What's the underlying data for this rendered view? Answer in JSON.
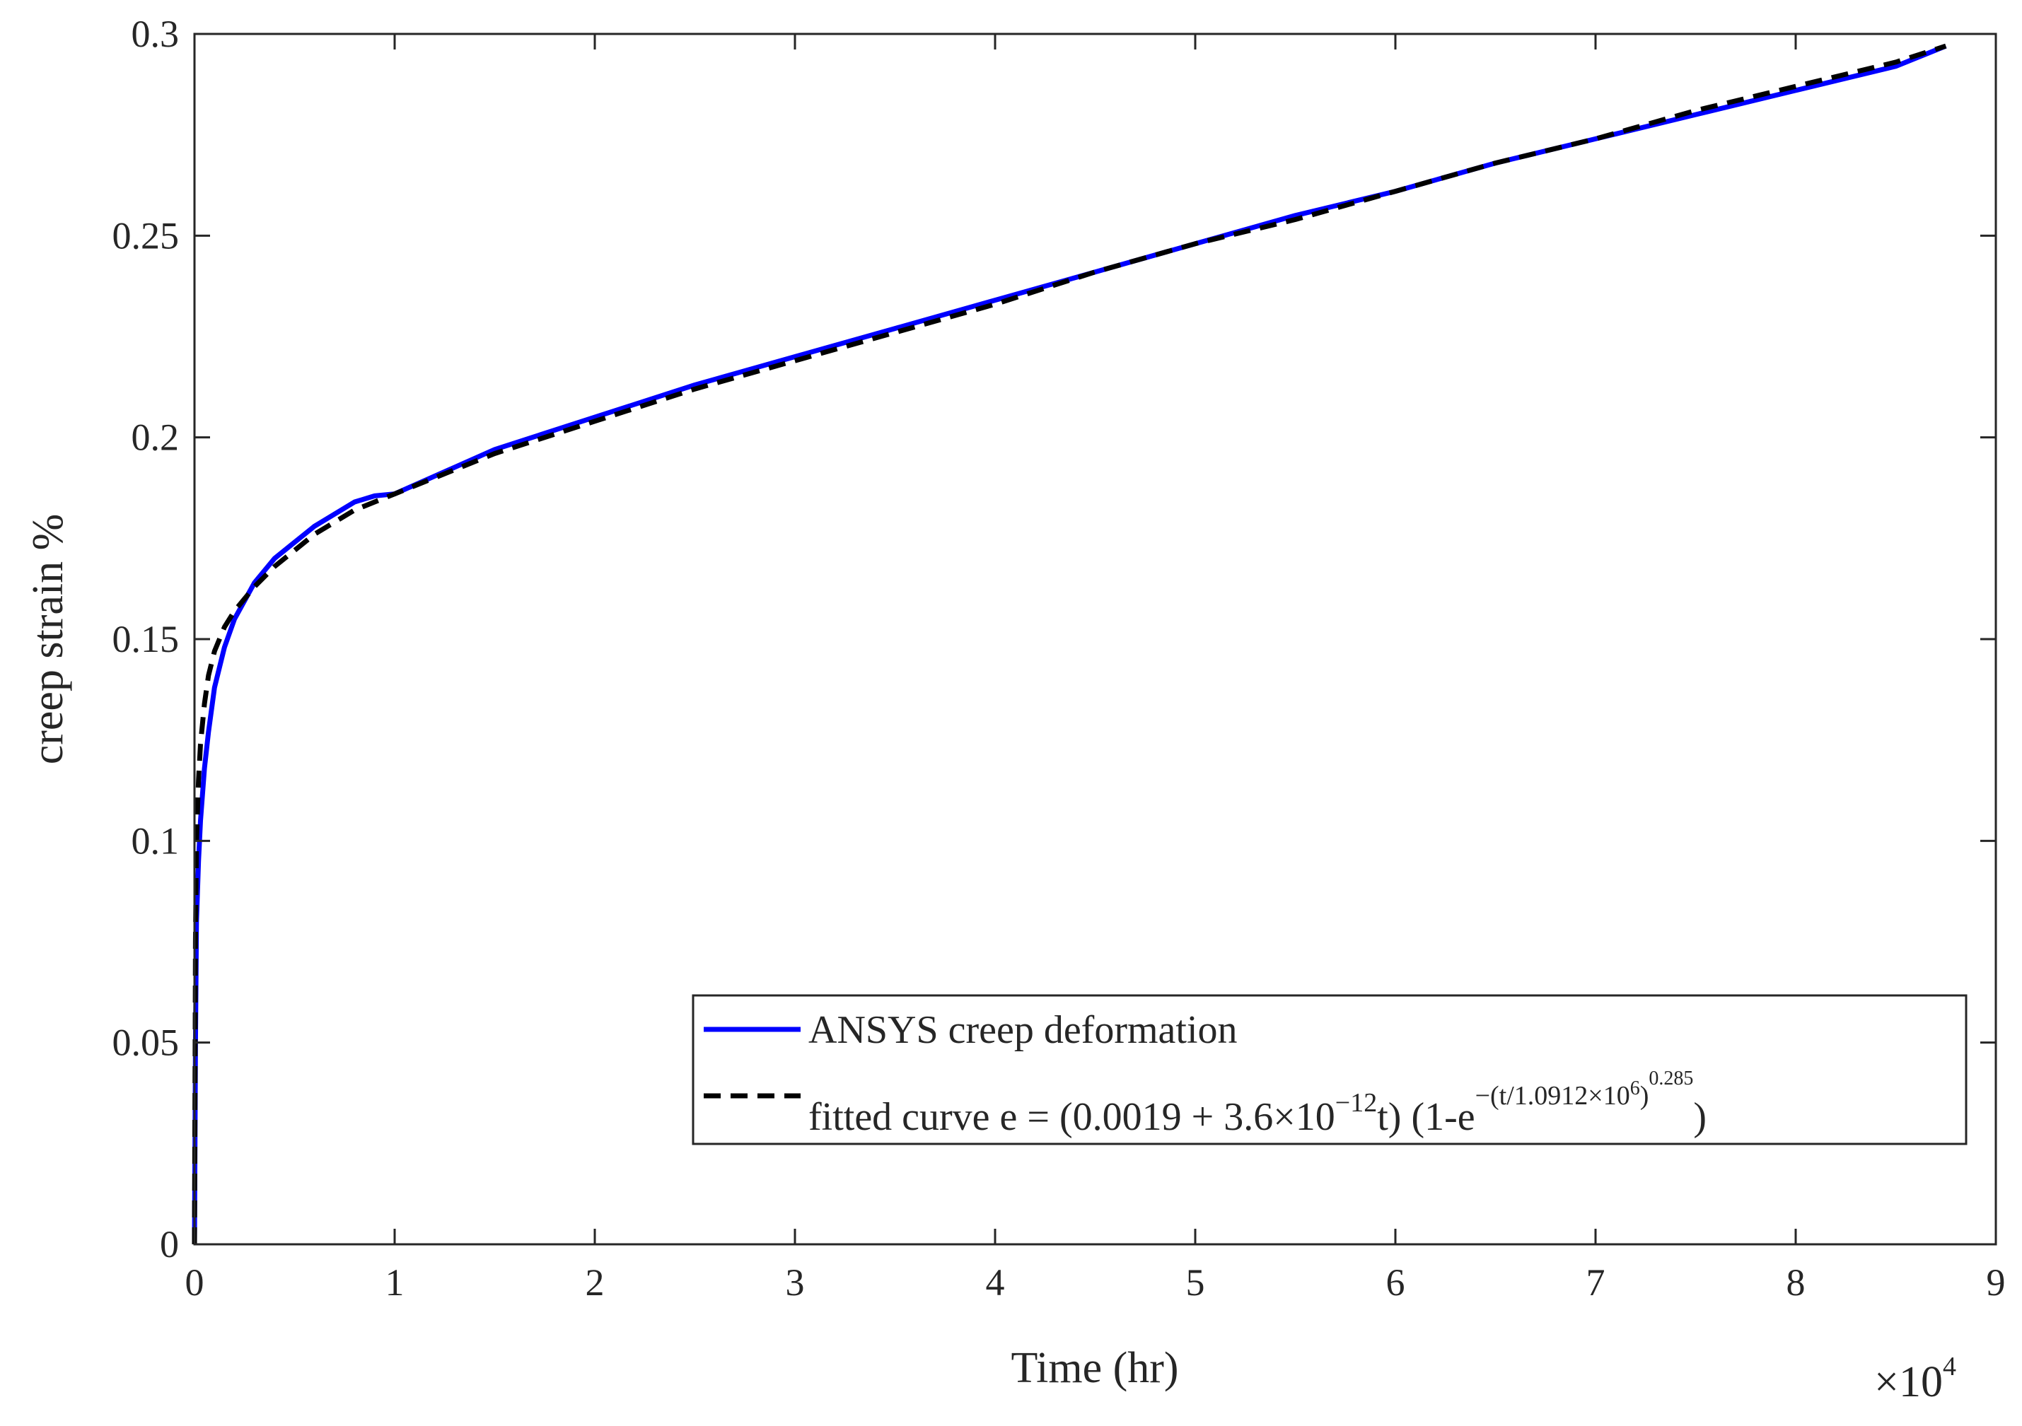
{
  "chart_data": {
    "type": "line",
    "xlabel": "Time (hr)",
    "ylabel": "creep strain %",
    "x_exponent_label": "×10",
    "x_exponent_power": "4",
    "xlim": [
      0,
      90000
    ],
    "ylim": [
      0,
      0.3
    ],
    "xticks": [
      0,
      10000,
      20000,
      30000,
      40000,
      50000,
      60000,
      70000,
      80000,
      90000
    ],
    "xtick_labels": [
      "0",
      "1",
      "2",
      "3",
      "4",
      "5",
      "6",
      "7",
      "8",
      "9"
    ],
    "yticks": [
      0,
      0.05,
      0.1,
      0.15,
      0.2,
      0.25,
      0.3
    ],
    "ytick_labels": [
      "0",
      "0.05",
      "0.1",
      "0.15",
      "0.2",
      "0.25",
      "0.3"
    ],
    "grid": false,
    "legend_position": "bottom-right",
    "legend": {
      "entry1": "ANSYS creep deformation",
      "entry2_pre": "fitted curve e = (0.0019 + 3.6×10",
      "entry2_exp1": "−12",
      "entry2_mid": "t) (1-e",
      "entry2_exp2a": "−(t/1.0912×10",
      "entry2_exp2b": "6",
      "entry2_exp2c": ")",
      "entry2_exp3": "0.285",
      "entry2_end": ")"
    },
    "series": [
      {
        "name": "ANSYS creep deformation",
        "color": "#0000ff",
        "style": "solid",
        "x": [
          0,
          50,
          100,
          200,
          300,
          500,
          700,
          1000,
          1500,
          2000,
          3000,
          4000,
          5000,
          6000,
          7000,
          8000,
          9000,
          10000,
          15000,
          20000,
          25000,
          30000,
          35000,
          40000,
          45000,
          50000,
          55000,
          60000,
          65000,
          70000,
          75000,
          80000,
          85000,
          87500
        ],
        "y": [
          0,
          0.05,
          0.08,
          0.095,
          0.105,
          0.118,
          0.127,
          0.138,
          0.148,
          0.155,
          0.164,
          0.17,
          0.174,
          0.178,
          0.181,
          0.184,
          0.1855,
          0.186,
          0.197,
          0.205,
          0.213,
          0.22,
          0.227,
          0.234,
          0.241,
          0.248,
          0.255,
          0.261,
          0.268,
          0.274,
          0.28,
          0.286,
          0.292,
          0.297
        ]
      },
      {
        "name": "fitted curve",
        "color": "#000000",
        "style": "dashed",
        "x": [
          0,
          50,
          100,
          200,
          300,
          500,
          700,
          1000,
          1500,
          2000,
          3000,
          4000,
          5000,
          6000,
          7000,
          8000,
          9000,
          10000,
          15000,
          20000,
          25000,
          30000,
          35000,
          40000,
          45000,
          50000,
          55000,
          60000,
          65000,
          70000,
          75000,
          80000,
          85000,
          87500
        ],
        "y": [
          0,
          0.075,
          0.1,
          0.115,
          0.124,
          0.134,
          0.141,
          0.147,
          0.153,
          0.157,
          0.163,
          0.168,
          0.172,
          0.176,
          0.179,
          0.182,
          0.184,
          0.186,
          0.196,
          0.204,
          0.212,
          0.219,
          0.226,
          0.233,
          0.241,
          0.248,
          0.254,
          0.261,
          0.268,
          0.274,
          0.281,
          0.287,
          0.293,
          0.297
        ]
      }
    ]
  }
}
